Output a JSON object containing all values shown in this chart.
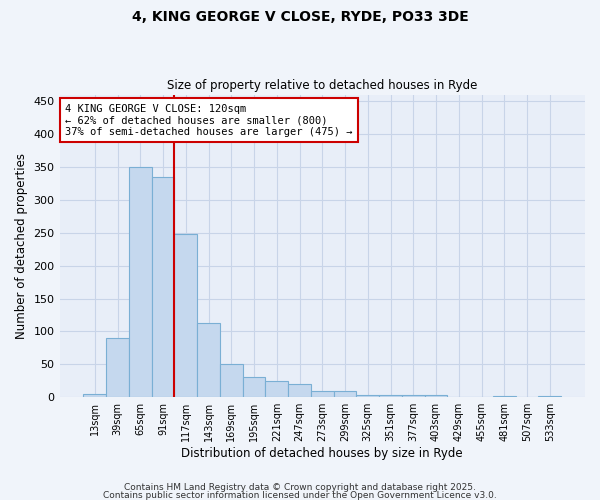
{
  "title_line1": "4, KING GEORGE V CLOSE, RYDE, PO33 3DE",
  "title_line2": "Size of property relative to detached houses in Ryde",
  "xlabel": "Distribution of detached houses by size in Ryde",
  "ylabel": "Number of detached properties",
  "bar_color": "#c5d8ee",
  "bar_edge_color": "#7aafd4",
  "background_color": "#e8eef8",
  "grid_color": "#c8d4e8",
  "red_line_color": "#cc0000",
  "categories": [
    "13sqm",
    "39sqm",
    "65sqm",
    "91sqm",
    "117sqm",
    "143sqm",
    "169sqm",
    "195sqm",
    "221sqm",
    "247sqm",
    "273sqm",
    "299sqm",
    "325sqm",
    "351sqm",
    "377sqm",
    "403sqm",
    "429sqm",
    "455sqm",
    "481sqm",
    "507sqm",
    "533sqm"
  ],
  "values": [
    5,
    90,
    350,
    335,
    248,
    113,
    50,
    30,
    25,
    20,
    10,
    10,
    3,
    4,
    3,
    3,
    1,
    0,
    2,
    0,
    2
  ],
  "red_line_index": 3.5,
  "annotation_text": "4 KING GEORGE V CLOSE: 120sqm\n← 62% of detached houses are smaller (800)\n37% of semi-detached houses are larger (475) →",
  "annotation_box_color": "#ffffff",
  "annotation_box_edge": "#cc0000",
  "ylim": [
    0,
    460
  ],
  "yticks": [
    0,
    50,
    100,
    150,
    200,
    250,
    300,
    350,
    400,
    450
  ],
  "footer_line1": "Contains HM Land Registry data © Crown copyright and database right 2025.",
  "footer_line2": "Contains public sector information licensed under the Open Government Licence v3.0."
}
